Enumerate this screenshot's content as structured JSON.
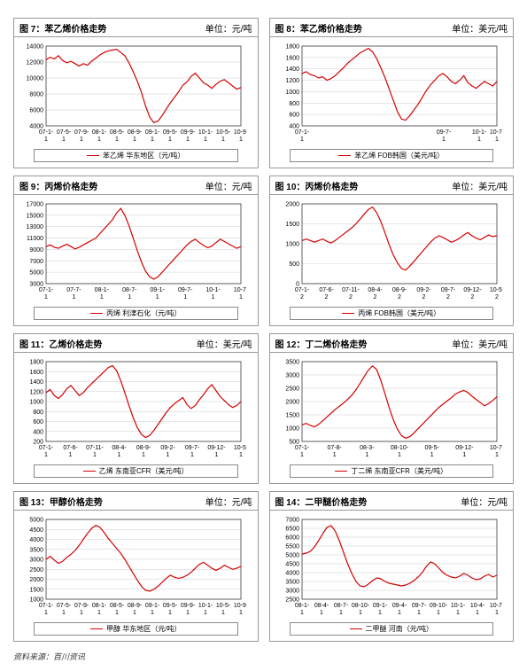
{
  "source_line": "资料来源：百川资讯",
  "global": {
    "line_color": "#d40000",
    "axis_color": "#000000",
    "grid_color": "#cccccc",
    "bg_color": "#ffffff",
    "line_width": 1.2,
    "tick_fontsize": 7,
    "title_fontsize": 10
  },
  "charts": [
    {
      "id": "c7",
      "title": "图 7：苯乙烯价格走势",
      "unit": "单位：元/吨",
      "legend": "苯乙烯 华东地区（元/吨）",
      "ylim": [
        4000,
        14000
      ],
      "ytick_step": 2000,
      "xlabels": [
        "07-1-1",
        "07-5-1",
        "07-9-1",
        "08-1-1",
        "08-5-1",
        "08-9-1",
        "09-1-1",
        "09-5-1",
        "09-9-1",
        "10-1-1",
        "10-5-1",
        "10-9-1"
      ],
      "values": [
        12300,
        12600,
        12400,
        12800,
        12200,
        11900,
        12100,
        11800,
        11500,
        11800,
        11600,
        12100,
        12500,
        12900,
        13200,
        13400,
        13500,
        13600,
        13200,
        12800,
        11900,
        10800,
        9600,
        8200,
        6500,
        5100,
        4400,
        4600,
        5300,
        6100,
        6900,
        7600,
        8300,
        9100,
        9500,
        10200,
        10600,
        10000,
        9400,
        9100,
        8700,
        9200,
        9600,
        9800,
        9400,
        9000,
        8600,
        8800
      ]
    },
    {
      "id": "c8",
      "title": "图 8：苯乙烯价格走势",
      "unit": "单位：美元/吨",
      "legend": "苯乙烯 FOB韩国（美元/吨）",
      "ylim": [
        400,
        1800
      ],
      "ytick_step": 200,
      "xlabels": [
        "07-1-1",
        "",
        "",
        "",
        "",
        "",
        "",
        "",
        "09-7-1",
        "",
        "10-1-1",
        "10-7-1"
      ],
      "values": [
        1320,
        1350,
        1300,
        1280,
        1240,
        1260,
        1200,
        1230,
        1280,
        1350,
        1420,
        1500,
        1560,
        1620,
        1680,
        1720,
        1760,
        1700,
        1580,
        1420,
        1250,
        1050,
        850,
        650,
        520,
        500,
        580,
        680,
        780,
        900,
        1020,
        1120,
        1200,
        1280,
        1320,
        1260,
        1180,
        1140,
        1200,
        1280,
        1160,
        1100,
        1060,
        1120,
        1180,
        1140,
        1100,
        1180
      ]
    },
    {
      "id": "c9",
      "title": "图 9：丙烯价格走势",
      "unit": "单位：元/吨",
      "legend": "丙烯 利津石化（元/吨）",
      "ylim": [
        3000,
        17000
      ],
      "ytick_step": 2000,
      "xlabels": [
        "07-1-1",
        "07-7-1",
        "08-1-1",
        "08-7-1",
        "09-1-1",
        "09-7-1",
        "10-1-1",
        "10-7-1"
      ],
      "values": [
        9500,
        9800,
        9400,
        9200,
        9600,
        9900,
        9500,
        9100,
        9400,
        9800,
        10200,
        10600,
        11000,
        11800,
        12600,
        13400,
        14200,
        15400,
        16200,
        15000,
        13200,
        11000,
        8800,
        6800,
        5200,
        4200,
        3800,
        4200,
        5000,
        5800,
        6600,
        7400,
        8200,
        9000,
        9800,
        10400,
        10800,
        10200,
        9700,
        9300,
        9600,
        10200,
        10800,
        10400,
        10000,
        9600,
        9200,
        9500
      ]
    },
    {
      "id": "c10",
      "title": "图 10：丙烯价格走势",
      "unit": "单位：美元/吨",
      "legend": "丙烯 FOB韩国（美元/吨）",
      "ylim": [
        0,
        2000
      ],
      "ytick_step": 500,
      "xlabels": [
        "07-1-2",
        "07-6-2",
        "07-11-2",
        "08-4-2",
        "08-9-2",
        "09-2-2",
        "09-7-2",
        "09-12-2",
        "10-5-2"
      ],
      "values": [
        1080,
        1120,
        1080,
        1040,
        1080,
        1120,
        1060,
        1020,
        1080,
        1160,
        1240,
        1320,
        1400,
        1500,
        1620,
        1740,
        1860,
        1920,
        1780,
        1560,
        1280,
        980,
        720,
        520,
        380,
        340,
        440,
        560,
        680,
        800,
        920,
        1040,
        1140,
        1200,
        1160,
        1100,
        1040,
        1080,
        1140,
        1220,
        1280,
        1200,
        1140,
        1100,
        1160,
        1220,
        1180,
        1200
      ]
    },
    {
      "id": "c11",
      "title": "图 11：乙烯价格走势",
      "unit": "单位：美元/吨",
      "legend": "乙烯 东南亚CFR（美元/吨）",
      "ylim": [
        200,
        1800
      ],
      "ytick_step": 200,
      "xlabels": [
        "07-1-1",
        "07-6-1",
        "07-11-1",
        "08-4-1",
        "08-9-1",
        "09-2-1",
        "09-7-1",
        "09-12-1",
        "10-5-1"
      ],
      "values": [
        1180,
        1240,
        1120,
        1060,
        1140,
        1260,
        1320,
        1220,
        1120,
        1180,
        1280,
        1360,
        1440,
        1520,
        1600,
        1680,
        1720,
        1620,
        1420,
        1180,
        920,
        680,
        480,
        340,
        280,
        320,
        420,
        540,
        660,
        780,
        880,
        960,
        1020,
        1080,
        940,
        860,
        920,
        1040,
        1140,
        1260,
        1340,
        1220,
        1100,
        1020,
        940,
        880,
        920,
        1000
      ]
    },
    {
      "id": "c12",
      "title": "图 12：丁二烯价格走势",
      "unit": "单位：美元/吨",
      "legend": "丁二烯 东南亚CFR（美元/吨）",
      "ylim": [
        500,
        3500
      ],
      "ytick_step": 500,
      "xlabels": [
        "07-1-1",
        "07-8-1",
        "08-3-1",
        "08-10-1",
        "09-5-1",
        "09-12-1",
        "10-7-1"
      ],
      "values": [
        1120,
        1180,
        1100,
        1050,
        1140,
        1280,
        1420,
        1560,
        1700,
        1820,
        1940,
        2080,
        2240,
        2440,
        2680,
        2940,
        3180,
        3340,
        3200,
        2800,
        2300,
        1780,
        1320,
        960,
        720,
        620,
        680,
        820,
        980,
        1140,
        1300,
        1460,
        1620,
        1780,
        1900,
        2020,
        2140,
        2280,
        2360,
        2420,
        2340,
        2200,
        2080,
        1960,
        1840,
        1920,
        2040,
        2180
      ]
    },
    {
      "id": "c13",
      "title": "图 13：甲醇价格走势",
      "unit": "单位：元/吨",
      "legend": "甲醇 华东地区（元/吨）",
      "ylim": [
        1000,
        5000
      ],
      "ytick_step": 500,
      "xlabels": [
        "07-1-1",
        "07-5-1",
        "07-9-1",
        "08-1-1",
        "08-5-1",
        "08-9-1",
        "09-1-1",
        "09-5-1",
        "09-9-1",
        "10-1-1",
        "10-5-1",
        "10-9-1"
      ],
      "values": [
        3000,
        3150,
        2950,
        2800,
        2900,
        3100,
        3250,
        3450,
        3700,
        4000,
        4300,
        4550,
        4700,
        4600,
        4350,
        4050,
        3800,
        3550,
        3300,
        3000,
        2650,
        2300,
        1950,
        1650,
        1450,
        1400,
        1500,
        1650,
        1850,
        2050,
        2200,
        2100,
        2050,
        2100,
        2200,
        2350,
        2550,
        2750,
        2850,
        2700,
        2550,
        2450,
        2550,
        2700,
        2600,
        2500,
        2550,
        2650
      ]
    },
    {
      "id": "c14",
      "title": "图 14：二甲醚价格走势",
      "unit": "单位：元/吨",
      "legend": "二甲醚 河南（元/吨）",
      "ylim": [
        2500,
        7000
      ],
      "ytick_step": 500,
      "xlabels": [
        "08-1-1",
        "08-4-1",
        "08-7-1",
        "08-10-1",
        "09-1-1",
        "09-4-1",
        "09-7-1",
        "09-10-1",
        "10-1-1",
        "10-4-1",
        "10-7-1"
      ],
      "values": [
        5050,
        5100,
        5200,
        5450,
        5800,
        6200,
        6550,
        6650,
        6350,
        5800,
        5150,
        4500,
        3950,
        3500,
        3250,
        3200,
        3350,
        3550,
        3700,
        3650,
        3500,
        3400,
        3350,
        3300,
        3250,
        3300,
        3400,
        3550,
        3750,
        4000,
        4350,
        4600,
        4500,
        4250,
        4000,
        3850,
        3750,
        3700,
        3800,
        3950,
        3850,
        3700,
        3600,
        3650,
        3800,
        3900,
        3750,
        3850
      ]
    }
  ]
}
